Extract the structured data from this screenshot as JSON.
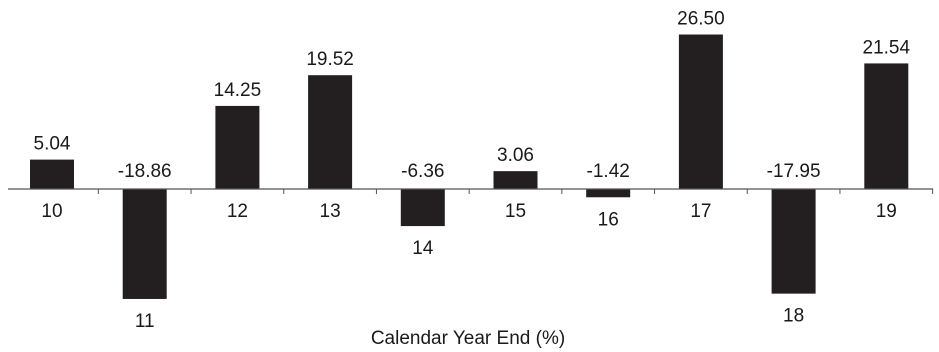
{
  "chart_data": {
    "type": "bar",
    "categories": [
      "10",
      "11",
      "12",
      "13",
      "14",
      "15",
      "16",
      "17",
      "18",
      "19"
    ],
    "values": [
      5.04,
      -18.86,
      14.25,
      19.52,
      -6.36,
      3.06,
      -1.42,
      26.5,
      -17.95,
      21.54
    ],
    "value_labels": [
      "5.04",
      "-18.86",
      "14.25",
      "19.52",
      "-6.36",
      "3.06",
      "-1.42",
      "26.50",
      "-17.95",
      "21.54"
    ],
    "xlabel": "Calendar Year End (%)",
    "bar_color": "#231f20",
    "axis_color": "#555555",
    "grid": false
  }
}
